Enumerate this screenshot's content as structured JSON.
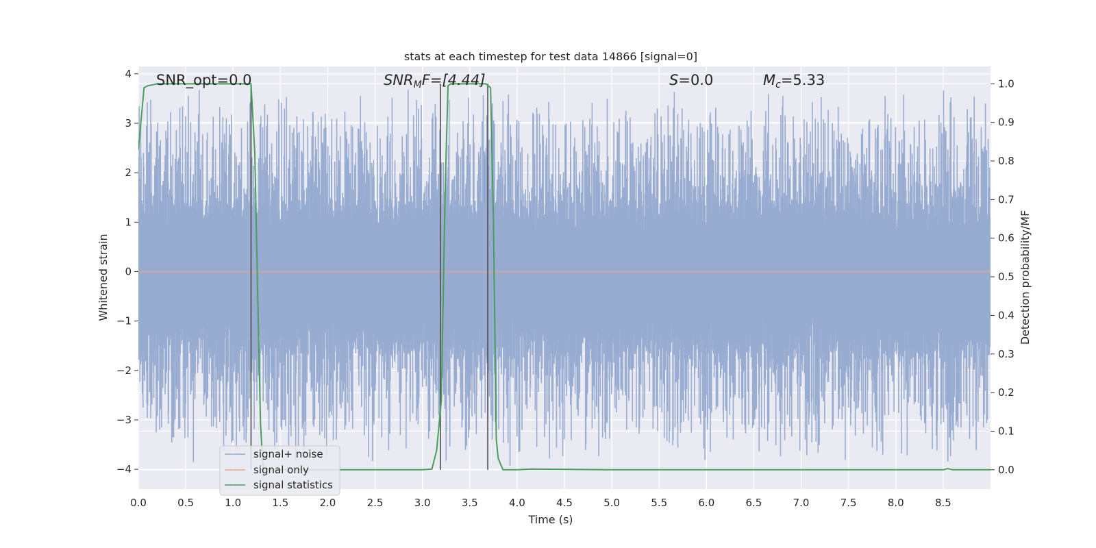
{
  "chart_data": {
    "type": "line",
    "title": "stats at each timestep for test data 14866 [signal=0]",
    "xlabel": "Time (s)",
    "ylabel": "Whitened strain",
    "y2label": "Detection probability/MF",
    "xlim": [
      0.0,
      9.0
    ],
    "ylim": [
      -4.4,
      4.15
    ],
    "y2lim": [
      -0.05,
      1.045
    ],
    "x_ticks": [
      0.0,
      0.5,
      1.0,
      1.5,
      2.0,
      2.5,
      3.0,
      3.5,
      4.0,
      4.5,
      5.0,
      5.5,
      6.0,
      6.5,
      7.0,
      7.5,
      8.0,
      8.5
    ],
    "x_tick_labels": [
      "0.0",
      "0.5",
      "1.0",
      "1.5",
      "2.0",
      "2.5",
      "3.0",
      "3.5",
      "4.0",
      "4.5",
      "5.0",
      "5.5",
      "6.0",
      "6.5",
      "7.0",
      "7.5",
      "8.0",
      "8.5"
    ],
    "y_ticks": [
      -4,
      -3,
      -2,
      -1,
      0,
      1,
      2,
      3,
      4
    ],
    "y_tick_labels": [
      "−4",
      "−3",
      "−2",
      "−1",
      "0",
      "1",
      "2",
      "3",
      "4"
    ],
    "y2_ticks": [
      0.0,
      0.1,
      0.2,
      0.3,
      0.4,
      0.5,
      0.6,
      0.7,
      0.8,
      0.9,
      1.0
    ],
    "y2_tick_labels": [
      "0.0",
      "0.1",
      "0.2",
      "0.3",
      "0.4",
      "0.5",
      "0.6",
      "0.7",
      "0.8",
      "0.9",
      "1.0"
    ],
    "grid": true,
    "legend_placement": "lower-left",
    "series": [
      {
        "name": "signal+ noise",
        "color": "#98abd0",
        "axis": "left",
        "kind": "noise",
        "x_range": [
          0.0,
          9.0
        ],
        "typical_envelope": [
          -1.7,
          1.45
        ],
        "peak_range": [
          -3.95,
          3.8
        ]
      },
      {
        "name": "signal only",
        "color": "#e8a48a",
        "axis": "left",
        "x": [
          0.0,
          9.0
        ],
        "y": [
          0.0,
          0.0
        ]
      },
      {
        "name": "signal statistics",
        "color": "#4a9e5c",
        "axis": "right",
        "x": [
          0.0,
          0.06,
          0.1,
          0.2,
          0.3,
          0.5,
          1.0,
          1.19,
          1.23,
          1.26,
          1.29,
          1.31,
          1.32,
          1.4,
          2.0,
          2.5,
          3.0,
          3.1,
          3.15,
          3.2,
          3.24,
          3.27,
          3.3,
          3.5,
          3.67,
          3.72,
          3.75,
          3.78,
          3.8,
          3.85,
          4.0,
          4.15,
          5.0,
          6.0,
          7.0,
          8.0,
          8.5,
          8.55,
          8.6,
          9.0
        ],
        "y": [
          0.83,
          0.99,
          0.995,
          1.0,
          1.0,
          1.0,
          1.0,
          1.0,
          0.82,
          0.45,
          0.12,
          0.03,
          0.0,
          0.0,
          0.0,
          0.0,
          0.0,
          0.002,
          0.05,
          0.18,
          0.72,
          0.995,
          1.0,
          1.0,
          1.0,
          0.99,
          0.65,
          0.08,
          0.03,
          0.0,
          0.0,
          0.002,
          0.0,
          0.0,
          0.0,
          0.0,
          0.0,
          0.003,
          0.0,
          0.0
        ]
      }
    ],
    "vertical_lines": {
      "color": "#4d4d4d",
      "x": [
        1.19,
        3.19,
        3.69
      ],
      "y2_range": [
        0.0,
        1.0
      ]
    },
    "annotations": {
      "snr_opt": "SNR_opt=0.0",
      "snr_mf_main": "SNR",
      "snr_mf_sub": "M",
      "snr_mf_tail": "F=[4.44]",
      "s_italic": "S",
      "s_tail": "=0.0",
      "mc_main": "M",
      "mc_sub": "c",
      "mc_tail": "=5.33"
    }
  }
}
